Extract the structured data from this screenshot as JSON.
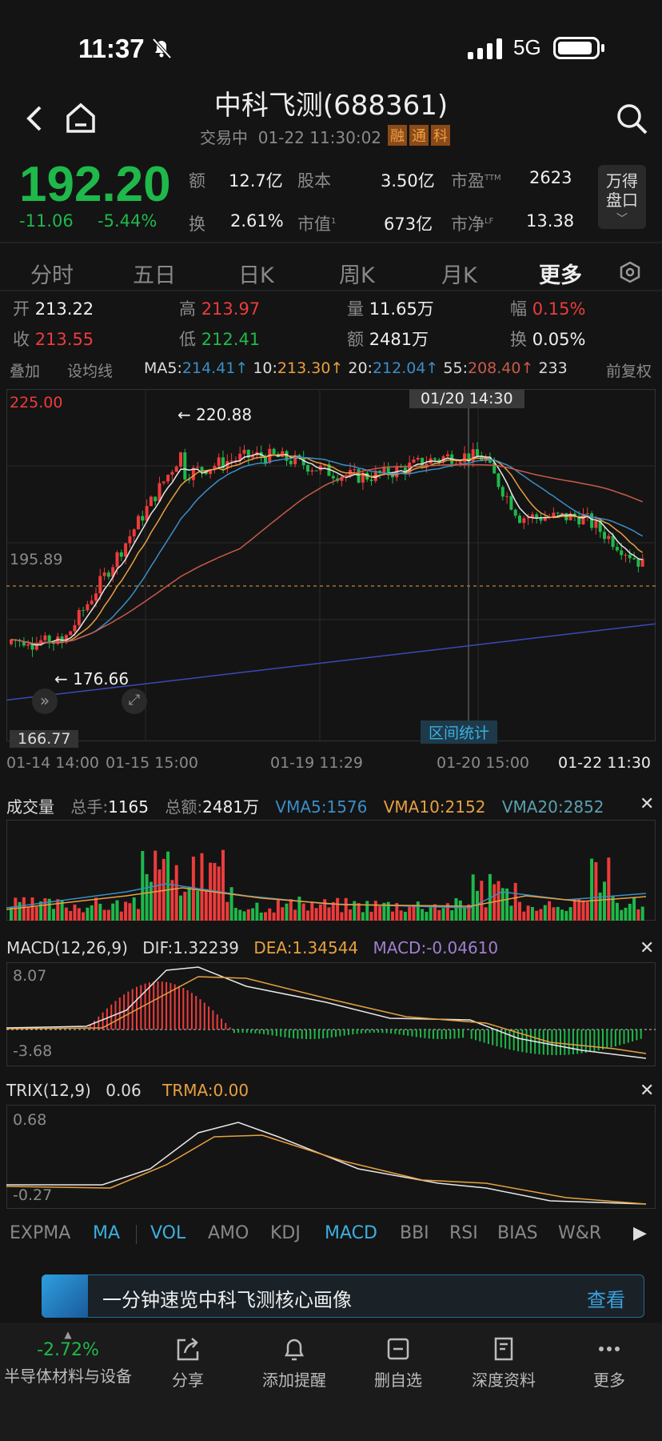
{
  "status_bar": {
    "time": "11:37",
    "network": "5G"
  },
  "header": {
    "title": "中科飞测(688361)",
    "trading_state": "交易中",
    "datetime": "01-22 11:30:02",
    "tags": [
      "融",
      "通",
      "科"
    ]
  },
  "quote": {
    "price": "192.20",
    "change": "-11.06",
    "change_pct": "-5.44%",
    "stats": [
      {
        "k": "额",
        "v": "12.7亿"
      },
      {
        "k": "股本",
        "v": "3.50亿"
      },
      {
        "k": "市盈",
        "sup": "TTM",
        "v": "2623"
      },
      {
        "k": "换",
        "v": "2.61%"
      },
      {
        "k": "市值",
        "sup": "1",
        "v": "673亿"
      },
      {
        "k": "市净",
        "sup": "LF",
        "v": "13.38"
      }
    ],
    "side_button": "万得\n盘口"
  },
  "tabs": [
    "分时",
    "五日",
    "日K",
    "周K",
    "月K",
    "更多"
  ],
  "ohlc": {
    "open_label": "开",
    "open": "213.22",
    "high_label": "高",
    "high": "213.97",
    "vol_label": "量",
    "vol": "11.65万",
    "amp_label": "幅",
    "amp": "0.15%",
    "close_label": "收",
    "close": "213.55",
    "low_label": "低",
    "low": "212.41",
    "amt_label": "额",
    "amt": "2481万",
    "turn_label": "换",
    "turn": "0.05%"
  },
  "ma_bar": {
    "overlay": "叠加",
    "set_ma": "设均线",
    "ma5_label": "MA5:",
    "ma5": "214.41↑",
    "ma10_label": "10:",
    "ma10": "213.30↑",
    "ma20_label": "20:",
    "ma20": "212.04↑",
    "ma55_label": "55:",
    "ma55": "208.40↑",
    "ma233": "233",
    "fq": "前复权"
  },
  "kchart": {
    "ymax": "225.00",
    "ymid": "195.89",
    "ymin": "166.77",
    "ymin_box": "166.77",
    "high_mark": "220.88",
    "low_mark": "176.66",
    "cursor_time": "01/20 14:30",
    "range_stats": "区间统计",
    "xlabels": [
      "01-14 14:00",
      "01-15 15:00",
      "01-19 11:29",
      "01-20 15:00",
      "01-22 11:30"
    ],
    "colors": {
      "up": "#ee3b3b",
      "down": "#1fb84a",
      "ma5": "#e8e8e8",
      "ma10": "#e8a040",
      "ma20": "#3a8ec8",
      "ma55": "#c85a4a",
      "ma233": "#3a4ab8"
    }
  },
  "volume": {
    "title": "成交量",
    "total_hands_label": "总手:",
    "total_hands": "1165",
    "total_amt_label": "总额:",
    "total_amt": "2481万",
    "vma5": "VMA5:1576",
    "vma10": "VMA10:2152",
    "vma20": "VMA20:2852"
  },
  "macd": {
    "title": "MACD(12,26,9)",
    "dif": "DIF:1.32239",
    "dea": "DEA:1.34544",
    "macd": "MACD:-0.04610",
    "ymax": "8.07",
    "ymin": "-3.68"
  },
  "trix": {
    "title": "TRIX(12,9)",
    "value": "0.06",
    "trma": "TRMA:0.00",
    "ymax": "0.68",
    "ymin": "-0.27"
  },
  "indicators": [
    "EXPMA",
    "MA",
    "VOL",
    "AMO",
    "KDJ",
    "MACD",
    "BBI",
    "RSI",
    "BIAS",
    "W&R"
  ],
  "banner": {
    "text": "一分钟速览中科飞测核心画像",
    "button": "查看"
  },
  "bottom_nav": {
    "sector_change": "-2.72%",
    "sector_name": "半导体材料与设备",
    "items": [
      "分享",
      "添加提醒",
      "删自选",
      "深度资料",
      "更多"
    ]
  }
}
